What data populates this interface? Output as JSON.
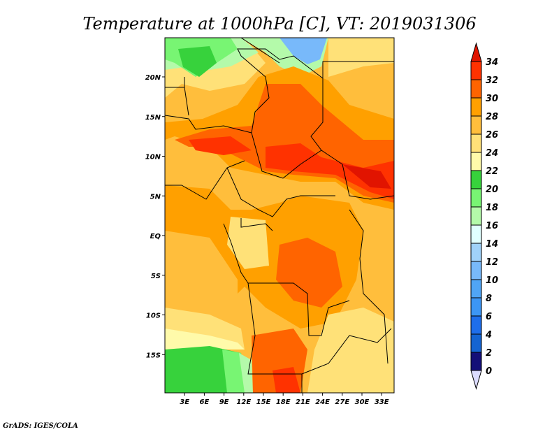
{
  "title": "Temperature at 1000hPa [C], VT: 2019031306",
  "footer": "GrADS: IGES/COLA",
  "map": {
    "variable": "Temperature at 1000hPa",
    "units": "C",
    "valid_time": "2019031306",
    "lon_range": [
      0,
      35
    ],
    "lat_range": [
      -20,
      25
    ],
    "lat_ticks": [
      {
        "v": 20,
        "label": "20N"
      },
      {
        "v": 15,
        "label": "15N"
      },
      {
        "v": 10,
        "label": "10N"
      },
      {
        "v": 5,
        "label": "5N"
      },
      {
        "v": 0,
        "label": "EQ"
      },
      {
        "v": -5,
        "label": "5S"
      },
      {
        "v": -10,
        "label": "10S"
      },
      {
        "v": -15,
        "label": "15S"
      }
    ],
    "lon_ticks": [
      {
        "v": 3,
        "label": "3E"
      },
      {
        "v": 6,
        "label": "6E"
      },
      {
        "v": 9,
        "label": "9E"
      },
      {
        "v": 12,
        "label": "12E"
      },
      {
        "v": 15,
        "label": "15E"
      },
      {
        "v": 18,
        "label": "18E"
      },
      {
        "v": 21,
        "label": "21E"
      },
      {
        "v": 24,
        "label": "24E"
      },
      {
        "v": 27,
        "label": "27E"
      },
      {
        "v": 30,
        "label": "30E"
      },
      {
        "v": 33,
        "label": "33E"
      }
    ]
  },
  "colorbar": {
    "labels": [
      "0",
      "2",
      "4",
      "6",
      "8",
      "10",
      "12",
      "14",
      "16",
      "18",
      "20",
      "22",
      "24",
      "26",
      "28",
      "30",
      "32",
      "34"
    ],
    "colors": [
      "#140f78",
      "#1464d2",
      "#1e6eeb",
      "#3c96f5",
      "#50a5f5",
      "#78b9fa",
      "#a0d2fa",
      "#e1ffff",
      "#b4faaa",
      "#78f573",
      "#37d23c",
      "#fffaaa",
      "#ffe178",
      "#ffbe3c",
      "#ffa000",
      "#ff6400",
      "#ff3200"
    ],
    "under_color": "#dcdcff",
    "over_color": "#e11400"
  }
}
